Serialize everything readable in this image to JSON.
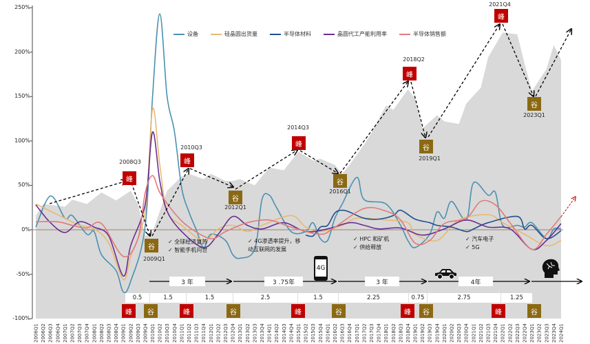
{
  "chart_data": {
    "type": "line",
    "ylim": [
      -100,
      250
    ],
    "yticks": [
      "250%",
      "200%",
      "150%",
      "100%",
      "50%",
      "0%",
      "-50%",
      "-100%"
    ],
    "ytick_values": [
      250,
      200,
      150,
      100,
      50,
      0,
      -50,
      -100
    ],
    "grid": false,
    "legend_position": "top",
    "categories": [
      "2006Q1",
      "2006Q2",
      "2006Q3",
      "2006Q4",
      "2007Q1",
      "2007Q2",
      "2007Q3",
      "2007Q4",
      "2008Q1",
      "2008Q2",
      "2008Q3",
      "2008Q4",
      "2009Q1",
      "2009Q2",
      "2009Q3",
      "2009Q4",
      "2010Q1",
      "2010Q2",
      "2010Q3",
      "2010Q4",
      "2011Q1",
      "2011Q2",
      "2011Q3",
      "2011Q4",
      "2012Q1",
      "2012Q2",
      "2012Q3",
      "2012Q4",
      "2013Q1",
      "2013Q2",
      "2013Q3",
      "2013Q4",
      "2014Q1",
      "2014Q2",
      "2014Q3",
      "2014Q4",
      "2015Q1",
      "2015Q2",
      "2015Q3",
      "2015Q4",
      "2016Q1",
      "2016Q2",
      "2016Q3",
      "2016Q4",
      "2017Q1",
      "2017Q2",
      "2017Q3",
      "2017Q4",
      "2018Q1",
      "2018Q2",
      "2018Q3",
      "2018Q4",
      "2019Q1",
      "2019Q2",
      "2019Q3",
      "2019Q4",
      "2020Q1",
      "2020Q2",
      "2020Q3",
      "2020Q4",
      "2021Q1",
      "2021Q2",
      "2021Q3",
      "2021Q4",
      "2022Q1",
      "2022Q2",
      "2022Q3",
      "2022Q4",
      "2023Q1",
      "2023Q2",
      "2023Q3",
      "2023Q4",
      "2024Q1"
    ],
    "area": {
      "color": "#d9d9d9",
      "points": [
        [
          "2006Q1",
          16
        ],
        [
          "2006Q2",
          29
        ],
        [
          "2007Q1",
          26
        ],
        [
          "2007Q2",
          34
        ],
        [
          "2007Q4",
          29
        ],
        [
          "2008Q2",
          42
        ],
        [
          "2008Q4",
          33
        ],
        [
          "2009Q2",
          44
        ],
        [
          "2009Q3",
          29
        ],
        [
          "2009Q4",
          -7
        ],
        [
          "2010Q1",
          -2
        ],
        [
          "2010Q3",
          44
        ],
        [
          "2011Q1",
          60
        ],
        [
          "2011Q2",
          63
        ],
        [
          "2011Q4",
          57
        ],
        [
          "2012Q1",
          63
        ],
        [
          "2012Q3",
          55
        ],
        [
          "2012Q4",
          55
        ],
        [
          "2013Q1",
          57
        ],
        [
          "2013Q3",
          50
        ],
        [
          "2014Q1",
          70
        ],
        [
          "2014Q3",
          67
        ],
        [
          "2015Q1",
          88
        ],
        [
          "2015Q3",
          78
        ],
        [
          "2015Q4",
          80
        ],
        [
          "2016Q2",
          73
        ],
        [
          "2016Q3",
          63
        ],
        [
          "2016Q4",
          73
        ],
        [
          "2017Q2",
          96
        ],
        [
          "2017Q3",
          109
        ],
        [
          "2018Q1",
          140
        ],
        [
          "2018Q2",
          135
        ],
        [
          "2018Q4",
          158
        ],
        [
          "2019Q1",
          148
        ],
        [
          "2019Q2",
          114
        ],
        [
          "2019Q4",
          129
        ],
        [
          "2020Q1",
          122
        ],
        [
          "2020Q3",
          119
        ],
        [
          "2020Q4",
          142
        ],
        [
          "2021Q2",
          160
        ],
        [
          "2021Q3",
          194
        ],
        [
          "2022Q1",
          222
        ],
        [
          "2022Q3",
          220
        ],
        [
          "2022Q4",
          187
        ],
        [
          "2023Q1",
          156
        ],
        [
          "2023Q3",
          181
        ],
        [
          "2023Q4",
          208
        ],
        [
          "2024Q1",
          191
        ]
      ]
    },
    "series": [
      {
        "name": "设备",
        "color": "#4a90b0",
        "points": [
          [
            "2006Q1",
            3
          ],
          [
            "2006Q3",
            38
          ],
          [
            "2007Q1",
            13
          ],
          [
            "2007Q2",
            16
          ],
          [
            "2007Q4",
            -5
          ],
          [
            "2008Q1",
            -2
          ],
          [
            "2008Q2",
            -28
          ],
          [
            "2008Q4",
            -46
          ],
          [
            "2009Q1",
            -70
          ],
          [
            "2009Q2",
            -58
          ],
          [
            "2009Q4",
            5
          ],
          [
            "2010Q1",
            150
          ],
          [
            "2010Q2",
            243
          ],
          [
            "2010Q3",
            150
          ],
          [
            "2010Q4",
            111
          ],
          [
            "2011Q1",
            47
          ],
          [
            "2011Q2",
            20
          ],
          [
            "2011Q3",
            0
          ],
          [
            "2011Q4",
            -20
          ],
          [
            "2012Q1",
            -5
          ],
          [
            "2012Q3",
            -12
          ],
          [
            "2012Q4",
            -28
          ],
          [
            "2013Q1",
            -32
          ],
          [
            "2013Q3",
            -22
          ],
          [
            "2013Q4",
            34
          ],
          [
            "2014Q1",
            39
          ],
          [
            "2014Q2",
            25
          ],
          [
            "2014Q4",
            -2
          ],
          [
            "2015Q2",
            -2
          ],
          [
            "2015Q3",
            8
          ],
          [
            "2015Q4",
            -10
          ],
          [
            "2016Q1",
            -12
          ],
          [
            "2016Q2",
            13
          ],
          [
            "2016Q3",
            29
          ],
          [
            "2017Q1",
            59
          ],
          [
            "2017Q2",
            34
          ],
          [
            "2018Q1",
            29
          ],
          [
            "2018Q3",
            5
          ],
          [
            "2018Q4",
            -12
          ],
          [
            "2019Q1",
            -20
          ],
          [
            "2019Q3",
            -5
          ],
          [
            "2019Q4",
            20
          ],
          [
            "2020Q1",
            13
          ],
          [
            "2020Q2",
            32
          ],
          [
            "2020Q4",
            11
          ],
          [
            "2021Q1",
            53
          ],
          [
            "2021Q3",
            39
          ],
          [
            "2021Q4",
            42
          ],
          [
            "2022Q1",
            5
          ],
          [
            "2022Q3",
            5
          ],
          [
            "2022Q4",
            3
          ],
          [
            "2023Q1",
            8
          ],
          [
            "2023Q3",
            -10
          ],
          [
            "2023Q4",
            1
          ],
          [
            "2024Q1",
            1
          ]
        ]
      },
      {
        "name": "硅晶圆出货量",
        "color": "#e9b872",
        "points": [
          [
            "2006Q1",
            29
          ],
          [
            "2006Q3",
            21
          ],
          [
            "2007Q1",
            13
          ],
          [
            "2007Q3",
            5
          ],
          [
            "2008Q1",
            1
          ],
          [
            "2008Q3",
            -15
          ],
          [
            "2009Q1",
            -56
          ],
          [
            "2009Q2",
            -30
          ],
          [
            "2009Q4",
            21
          ],
          [
            "2010Q1",
            136
          ],
          [
            "2010Q2",
            73
          ],
          [
            "2010Q3",
            21
          ],
          [
            "2011Q1",
            5
          ],
          [
            "2011Q4",
            -12
          ],
          [
            "2012Q2",
            1
          ],
          [
            "2012Q4",
            5
          ],
          [
            "2013Q2",
            -2
          ],
          [
            "2013Q4",
            5
          ],
          [
            "2014Q4",
            16
          ],
          [
            "2015Q2",
            3
          ],
          [
            "2015Q4",
            -2
          ],
          [
            "2016Q3",
            5
          ],
          [
            "2017Q1",
            13
          ],
          [
            "2018Q1",
            11
          ],
          [
            "2018Q4",
            8
          ],
          [
            "2019Q1",
            -5
          ],
          [
            "2019Q4",
            -12
          ],
          [
            "2020Q3",
            11
          ],
          [
            "2021Q3",
            17
          ],
          [
            "2022Q1",
            8
          ],
          [
            "2022Q4",
            -5
          ],
          [
            "2023Q3",
            -18
          ],
          [
            "2024Q1",
            -12
          ]
        ]
      },
      {
        "name": "半导体材料",
        "color": "#1f4e8c",
        "points": [
          [
            "2015Q2",
            -6
          ],
          [
            "2015Q3",
            -7
          ],
          [
            "2015Q4",
            3
          ],
          [
            "2016Q1",
            5
          ],
          [
            "2016Q2",
            19
          ],
          [
            "2016Q3",
            22
          ],
          [
            "2016Q4",
            20
          ],
          [
            "2017Q2",
            13
          ],
          [
            "2017Q4",
            12
          ],
          [
            "2018Q2",
            16
          ],
          [
            "2018Q3",
            22
          ],
          [
            "2019Q1",
            12
          ],
          [
            "2019Q3",
            8
          ],
          [
            "2019Q4",
            5
          ],
          [
            "2020Q2",
            3
          ],
          [
            "2020Q4",
            -2
          ],
          [
            "2021Q1",
            1
          ],
          [
            "2021Q3",
            8
          ],
          [
            "2022Q3",
            15
          ],
          [
            "2022Q4",
            1
          ],
          [
            "2023Q1",
            5
          ],
          [
            "2023Q3",
            -10
          ],
          [
            "2024Q1",
            -1
          ]
        ]
      },
      {
        "name": "晶圆代工产能利用率",
        "color": "#6a2c91",
        "points": [
          [
            "2006Q1",
            28
          ],
          [
            "2006Q3",
            8
          ],
          [
            "2007Q1",
            -3
          ],
          [
            "2007Q3",
            9
          ],
          [
            "2008Q1",
            3
          ],
          [
            "2008Q3",
            -7
          ],
          [
            "2009Q1",
            -52
          ],
          [
            "2009Q2",
            -18
          ],
          [
            "2009Q4",
            29
          ],
          [
            "2010Q1",
            110
          ],
          [
            "2010Q2",
            55
          ],
          [
            "2010Q3",
            21
          ],
          [
            "2011Q1",
            -2
          ],
          [
            "2011Q4",
            -20
          ],
          [
            "2012Q2",
            -5
          ],
          [
            "2012Q4",
            15
          ],
          [
            "2013Q2",
            5
          ],
          [
            "2013Q4",
            1
          ],
          [
            "2014Q3",
            8
          ],
          [
            "2015Q2",
            -2
          ],
          [
            "2016Q1",
            1
          ],
          [
            "2016Q4",
            8
          ],
          [
            "2017Q2",
            5
          ],
          [
            "2017Q4",
            1
          ],
          [
            "2018Q3",
            2
          ],
          [
            "2019Q2",
            -6
          ],
          [
            "2020Q1",
            1
          ],
          [
            "2020Q4",
            11
          ],
          [
            "2021Q3",
            3
          ],
          [
            "2022Q2",
            1
          ],
          [
            "2023Q1",
            -22
          ],
          [
            "2023Q3",
            -12
          ],
          [
            "2024Q1",
            7
          ]
        ]
      },
      {
        "name": "半导体销售额",
        "color": "#e07a7a",
        "points": [
          [
            "2006Q1",
            9
          ],
          [
            "2006Q4",
            9
          ],
          [
            "2007Q2",
            5
          ],
          [
            "2007Q4",
            2
          ],
          [
            "2008Q2",
            7
          ],
          [
            "2009Q1",
            -30
          ],
          [
            "2009Q3",
            -10
          ],
          [
            "2009Q4",
            42
          ],
          [
            "2010Q1",
            61
          ],
          [
            "2010Q2",
            42
          ],
          [
            "2010Q4",
            19
          ],
          [
            "2011Q2",
            3
          ],
          [
            "2012Q1",
            -10
          ],
          [
            "2012Q3",
            -2
          ],
          [
            "2013Q2",
            8
          ],
          [
            "2014Q1",
            11
          ],
          [
            "2014Q4",
            3
          ],
          [
            "2015Q4",
            -5
          ],
          [
            "2016Q2",
            3
          ],
          [
            "2017Q2",
            24
          ],
          [
            "2018Q1",
            21
          ],
          [
            "2018Q3",
            11
          ],
          [
            "2019Q1",
            -15
          ],
          [
            "2019Q3",
            -12
          ],
          [
            "2020Q1",
            7
          ],
          [
            "2020Q4",
            13
          ],
          [
            "2021Q2",
            32
          ],
          [
            "2021Q4",
            28
          ],
          [
            "2022Q2",
            8
          ],
          [
            "2023Q1",
            -22
          ],
          [
            "2023Q3",
            -5
          ],
          [
            "2024Q1",
            15
          ]
        ]
      }
    ],
    "annotations": {
      "markers": [
        {
          "type": "peak",
          "glyph": "峰",
          "label": "2008Q3"
        },
        {
          "type": "trough",
          "glyph": "谷",
          "label": "2009Q1"
        },
        {
          "type": "peak",
          "glyph": "峰",
          "label": "2010Q3"
        },
        {
          "type": "trough",
          "glyph": "谷",
          "label": "2012Q1"
        },
        {
          "type": "peak",
          "glyph": "峰",
          "label": "2014Q3"
        },
        {
          "type": "trough",
          "glyph": "谷",
          "label": "2016Q1"
        },
        {
          "type": "peak",
          "glyph": "峰",
          "label": "2018Q2"
        },
        {
          "type": "trough",
          "glyph": "谷",
          "label": "2019Q1"
        },
        {
          "type": "peak",
          "glyph": "峰",
          "label": "2021Q4"
        },
        {
          "type": "trough",
          "glyph": "谷",
          "label": "2023Q1"
        }
      ],
      "drivers": [
        [
          "✓ 全球经济复苏",
          "✓ 智能手机问世"
        ],
        [
          "✓ 4G渗透率提升，移",
          "动互联网的发展"
        ],
        [
          "✓ HPC 和矿机",
          "✓ 供给释放"
        ],
        [
          "✓ 汽车电子",
          "✓ 5G"
        ]
      ],
      "cycle_durations": [
        "3 年",
        "3 .75年",
        "3 年",
        "4年"
      ],
      "intervals": [
        "0.5",
        "1.5",
        "1.5",
        "2.5",
        "1.5",
        "2.25",
        "0.75",
        "2.75",
        "1.25"
      ],
      "phone_icon_text": "4G"
    },
    "colors": {
      "peak": "#c00000",
      "trough": "#8b6914",
      "zero_line": "#a0806a"
    }
  }
}
